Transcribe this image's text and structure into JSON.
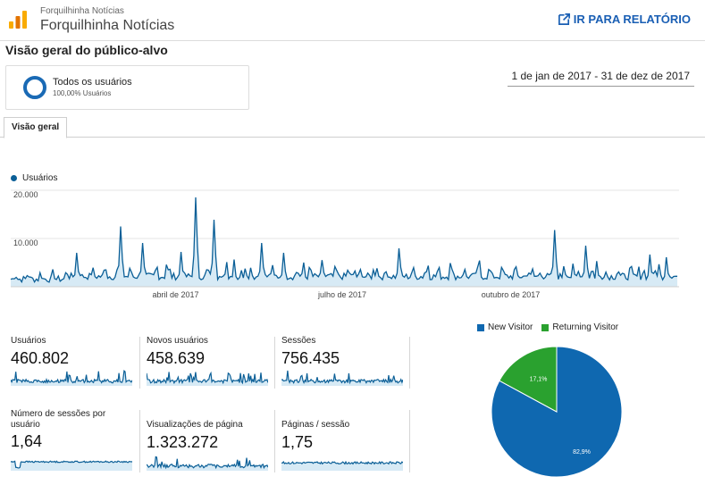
{
  "header": {
    "account": "Forquilhinha Notícias",
    "property": "Forquilhinha Notícias",
    "report_link": "IR PARA RELATÓRIO"
  },
  "page_title": "Visão geral do público-alvo",
  "segment": {
    "name": "Todos os usuários",
    "percent": "100,00% Usuários"
  },
  "date_range": "1 de jan de 2017 - 31 de dez de 2017",
  "tab_label": "Visão geral",
  "colors": {
    "series": "#0b5f97",
    "fill": "#d7eaf5",
    "new": "#0f68b0",
    "returning": "#2aa12f"
  },
  "chart_data": [
    {
      "type": "area",
      "legend": "Usuários",
      "y_ticks": [
        "20.000",
        "10.000"
      ],
      "y_tick_values": [
        20000,
        10000
      ],
      "x_ticks": [
        "abril de 2017",
        "julho de 2017",
        "outubro de 2017"
      ],
      "x_tick_days": [
        90,
        181,
        273
      ],
      "ylim": [
        0,
        22000
      ],
      "spikes": [
        {
          "day": 36,
          "value": 7600
        },
        {
          "day": 60,
          "value": 13500
        },
        {
          "day": 72,
          "value": 9800
        },
        {
          "day": 93,
          "value": 7800
        },
        {
          "day": 101,
          "value": 20000
        },
        {
          "day": 111,
          "value": 15000
        },
        {
          "day": 137,
          "value": 9800
        },
        {
          "day": 149,
          "value": 7600
        },
        {
          "day": 212,
          "value": 8600
        },
        {
          "day": 297,
          "value": 12700
        },
        {
          "day": 314,
          "value": 9200
        },
        {
          "day": 349,
          "value": 7200
        },
        {
          "day": 358,
          "value": 6600
        }
      ],
      "baseline": 1700
    },
    {
      "type": "pie",
      "series": [
        {
          "name": "New Visitor",
          "value": 82.9,
          "label": "82,9%"
        },
        {
          "name": "Returning Visitor",
          "value": 17.1,
          "label": "17,1%"
        }
      ]
    }
  ],
  "metrics": [
    {
      "label": "Usuários",
      "value": "460.802"
    },
    {
      "label": "Novos usuários",
      "value": "458.639"
    },
    {
      "label": "Sessões",
      "value": "756.435"
    },
    {
      "label": "Número de sessões por usuário",
      "value": "1,64"
    },
    {
      "label": "Visualizações de página",
      "value": "1.323.272"
    },
    {
      "label": "Páginas / sessão",
      "value": "1,75"
    }
  ]
}
